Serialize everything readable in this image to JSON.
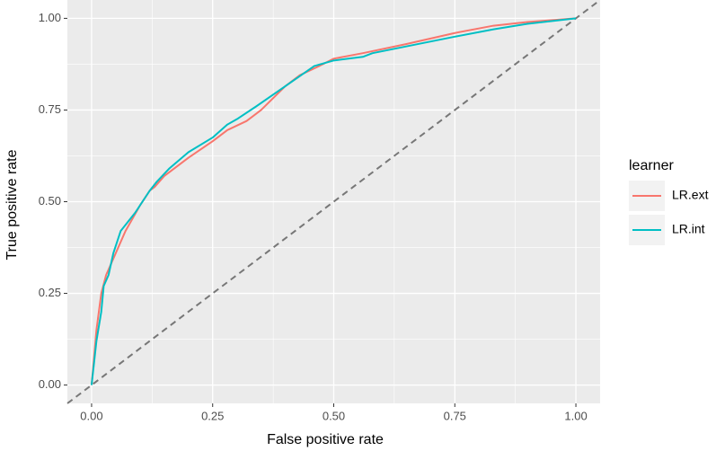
{
  "chart_data": {
    "type": "line",
    "x_label": "False positive rate",
    "y_label": "True positive rate",
    "legend_title": "learner",
    "xlim": [
      -0.05,
      1.05
    ],
    "ylim": [
      -0.05,
      1.05
    ],
    "xticks": [
      {
        "value": 0,
        "label": "0.00"
      },
      {
        "value": 0.25,
        "label": "0.25"
      },
      {
        "value": 0.5,
        "label": "0.50"
      },
      {
        "value": 0.75,
        "label": "0.75"
      },
      {
        "value": 1,
        "label": "1.00"
      }
    ],
    "yticks": [
      {
        "value": 0,
        "label": "0.00"
      },
      {
        "value": 0.25,
        "label": "0.25"
      },
      {
        "value": 0.5,
        "label": "0.50"
      },
      {
        "value": 0.75,
        "label": "0.75"
      },
      {
        "value": 1,
        "label": "1.00"
      }
    ],
    "grid": true,
    "minor_grid": true,
    "diagonal_reference": true,
    "legend": "right",
    "series": [
      {
        "name": "LR.ext",
        "color": "#F8766D",
        "x": [
          0,
          0.01,
          0.02,
          0.03,
          0.05,
          0.07,
          0.1,
          0.12,
          0.13,
          0.15,
          0.2,
          0.25,
          0.28,
          0.32,
          0.35,
          0.4,
          0.43,
          0.47,
          0.5,
          0.56,
          0.65,
          0.75,
          0.83,
          0.9,
          1
        ],
        "values": [
          0,
          0.15,
          0.25,
          0.3,
          0.36,
          0.42,
          0.49,
          0.53,
          0.54,
          0.57,
          0.62,
          0.665,
          0.695,
          0.72,
          0.75,
          0.815,
          0.845,
          0.87,
          0.89,
          0.905,
          0.93,
          0.96,
          0.98,
          0.99,
          1
        ]
      },
      {
        "name": "LR.int",
        "color": "#00BFC4",
        "x": [
          0,
          0.01,
          0.02,
          0.025,
          0.035,
          0.045,
          0.06,
          0.09,
          0.12,
          0.135,
          0.16,
          0.2,
          0.25,
          0.28,
          0.3,
          0.34,
          0.4,
          0.46,
          0.5,
          0.56,
          0.58,
          0.75,
          0.83,
          0.9,
          1
        ],
        "values": [
          0,
          0.12,
          0.2,
          0.27,
          0.3,
          0.36,
          0.42,
          0.47,
          0.53,
          0.555,
          0.59,
          0.635,
          0.675,
          0.71,
          0.725,
          0.76,
          0.815,
          0.87,
          0.885,
          0.895,
          0.905,
          0.95,
          0.97,
          0.985,
          1
        ]
      }
    ]
  }
}
